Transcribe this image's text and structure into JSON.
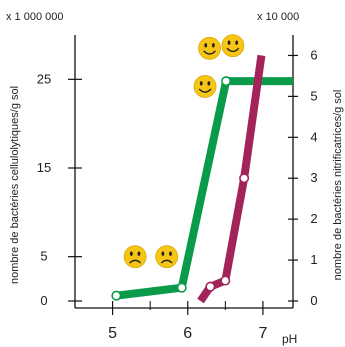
{
  "chart_data": {
    "type": "line",
    "title": "",
    "xlabel": "pH",
    "x_ticks": [
      "5",
      "6",
      "7"
    ],
    "xlim": [
      4.5,
      7.4
    ],
    "left_axis": {
      "multiplier_label": "x 1 000 000",
      "label": "nombre de bactéries cellulolytiques/g sol",
      "ticks": [
        "0",
        "5",
        "15",
        "25"
      ],
      "ylim": [
        0,
        30
      ]
    },
    "right_axis": {
      "multiplier_label": "x 10 000",
      "label": "nombre de bactéries nitrificatrices/g sol",
      "ticks": [
        "0",
        "1",
        "2",
        "3",
        "4",
        "5",
        "6"
      ],
      "ylim": [
        0,
        6.5
      ]
    },
    "series": [
      {
        "axis": "left",
        "color": "#0a9b4a",
        "points": [
          [
            5.05,
            0.6
          ],
          [
            5.92,
            1.5
          ],
          [
            6.51,
            24.8
          ],
          [
            7.4,
            24.8
          ]
        ],
        "markers": [
          [
            5.05,
            0.6
          ],
          [
            5.92,
            1.5
          ],
          [
            6.51,
            24.8
          ]
        ]
      },
      {
        "axis": "right",
        "color": "#a3245a",
        "points": [
          [
            6.17,
            0
          ],
          [
            6.3,
            0.35
          ],
          [
            6.5,
            0.5
          ],
          [
            6.75,
            3.0
          ],
          [
            6.98,
            6.0
          ]
        ],
        "markers": [
          [
            6.3,
            0.35
          ],
          [
            6.5,
            0.5
          ],
          [
            6.75,
            3.0
          ]
        ]
      }
    ],
    "annotations": [
      {
        "icon": "sad-face-icon",
        "x": 5.3,
        "y": 5.0
      },
      {
        "icon": "sad-face-icon",
        "x": 5.72,
        "y": 5.0
      },
      {
        "icon": "happy-face-icon",
        "x": 6.29,
        "y": 28.5
      },
      {
        "icon": "happy-face-icon",
        "x": 6.6,
        "y": 28.8
      },
      {
        "icon": "happy-face-icon",
        "x": 6.23,
        "y": 24.2
      }
    ],
    "grid": false,
    "legend": "none"
  }
}
